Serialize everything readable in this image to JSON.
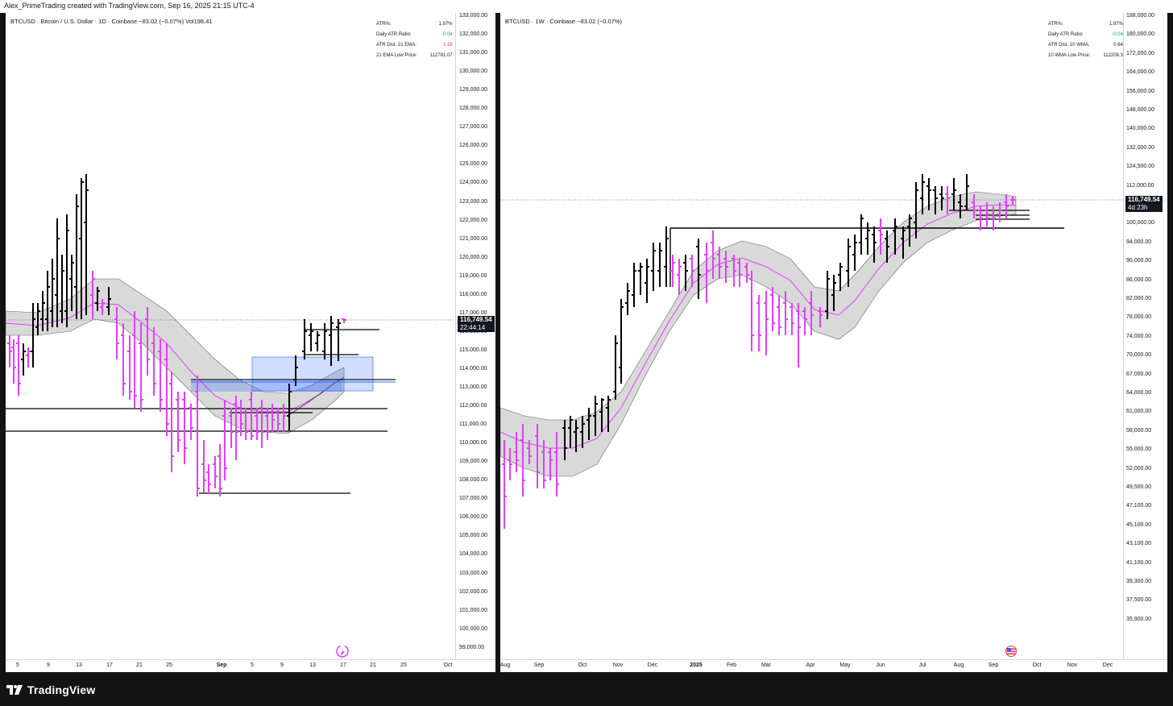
{
  "header": {
    "credit": "Alex_PrimeTrading created with TradingView.com, Sep 16, 2025 21:15 UTC-4"
  },
  "left_chart": {
    "legend": "BTCUSD · Bitcoin / U.S. Dollar · 1D · Coinbase  −83.02 (−0.07%)  Vol198.41",
    "table": [
      {
        "label": "ATR%:",
        "value": "1.97%",
        "color": "#131722"
      },
      {
        "label": "Daily ATR Ratio:",
        "value": "-0.04",
        "color": "#089981"
      },
      {
        "label": "ATR Dist. 21 EMA:",
        "value": "1.19",
        "color": "#f23645"
      },
      {
        "label": "21 EMA Low Price:",
        "value": "112781.07",
        "color": "#131722"
      }
    ],
    "price_label": "116,749.54",
    "countdown": "22:44:14",
    "y_ticks": [
      "133,000.00",
      "132,000.00",
      "131,000.00",
      "130,000.00",
      "129,000.00",
      "128,000.00",
      "127,000.00",
      "126,000.00",
      "125,000.00",
      "124,000.00",
      "123,000.00",
      "122,000.00",
      "121,000.00",
      "120,000.00",
      "119,000.00",
      "118,000.00",
      "117,000.00",
      "116,000.00",
      "115,000.00",
      "114,000.00",
      "113,000.00",
      "112,000.00",
      "111,000.00",
      "110,000.00",
      "109,000.00",
      "108,000.00",
      "107,000.00",
      "106,000.00",
      "105,000.00",
      "104,000.00",
      "103,000.00",
      "102,000.00",
      "101,000.00",
      "100,000.00",
      "99,000.00"
    ],
    "x_ticks": [
      "5",
      "9",
      "13",
      "17",
      "21",
      "25",
      "Sep",
      "5",
      "9",
      "13",
      "17",
      "21",
      "25",
      "Oct"
    ]
  },
  "right_chart": {
    "legend": "BTCUSD · 1W · Coinbase  −83.02 (−0.07%)",
    "table": [
      {
        "label": "ATR%:",
        "value": "1.97%",
        "color": "#131722"
      },
      {
        "label": "Daily ATR Ratio:",
        "value": "-0.04",
        "color": "#089981"
      },
      {
        "label": "ATR Dist. 10 WMA:",
        "value": "0.64",
        "color": "#131722"
      },
      {
        "label": "10 WMA Low Price:",
        "value": "112208.3",
        "color": "#131722"
      }
    ],
    "price_label": "116,749.54",
    "countdown": "4d 23h",
    "y_ticks": [
      "188,000.00",
      "180,000.00",
      "172,000.00",
      "164,000.00",
      "156,000.00",
      "148,000.00",
      "140,000.00",
      "132,000.00",
      "124,500.00",
      "112,000.00",
      "106,000.00",
      "100,000.00",
      "94,000.00",
      "90,000.00",
      "86,000.00",
      "82,000.00",
      "78,000.00",
      "74,000.00",
      "70,000.00",
      "67,000.00",
      "64,000.00",
      "61,000.00",
      "58,000.00",
      "55,000.00",
      "52,000.00",
      "49,500.00",
      "47,100.00",
      "45,100.00",
      "43,100.00",
      "41,100.00",
      "39,300.00",
      "37,500.00",
      "35,900.00"
    ],
    "x_ticks": [
      "Aug",
      "Sep",
      "Oct",
      "Nov",
      "Dec",
      "2025",
      "Feb",
      "Mar",
      "Apr",
      "May",
      "Jun",
      "Jul",
      "Aug",
      "Sep",
      "Oct",
      "Nov",
      "Dec"
    ]
  },
  "footer": {
    "brand": "TradingView"
  },
  "colors": {
    "up": "#000000",
    "down": "#e040fb",
    "band": "#d9d9d9",
    "zone": "#2962ff",
    "ema": "#e040fb"
  }
}
